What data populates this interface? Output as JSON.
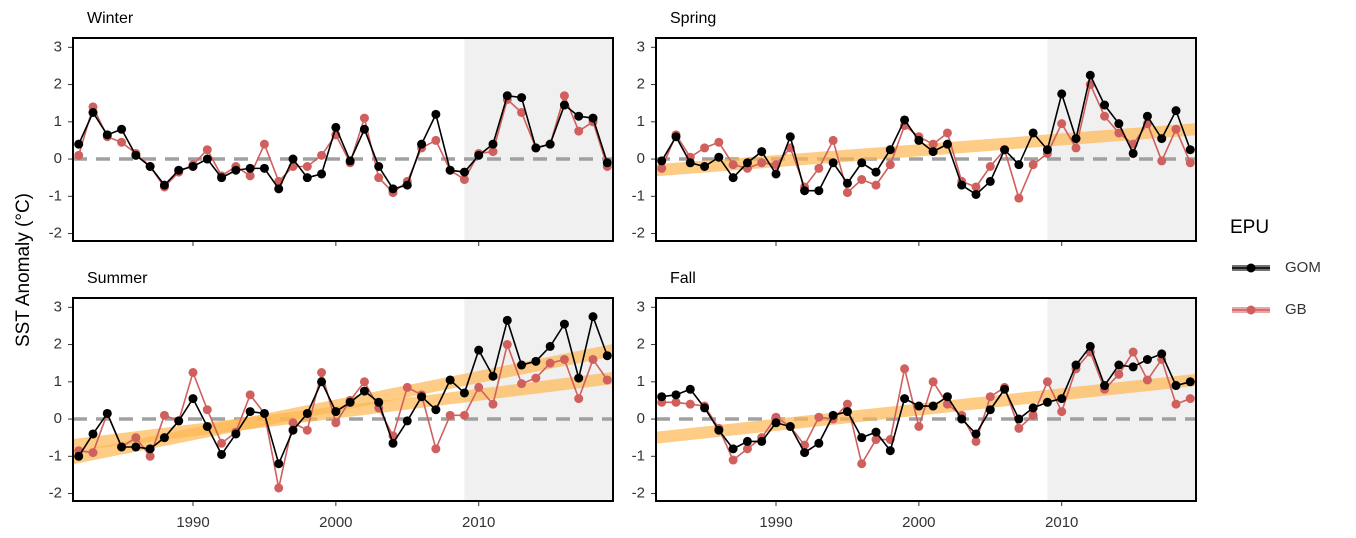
{
  "ylabel": "SST Anomaly (°C)",
  "legend_title": "EPU",
  "chart_data": [
    {
      "type": "line",
      "title": "Winter",
      "x": [
        1982,
        1983,
        1984,
        1985,
        1986,
        1987,
        1988,
        1989,
        1990,
        1991,
        1992,
        1993,
        1994,
        1995,
        1996,
        1997,
        1998,
        1999,
        2000,
        2001,
        2002,
        2003,
        2004,
        2005,
        2006,
        2007,
        2008,
        2009,
        2010,
        2011,
        2012,
        2013,
        2014,
        2015,
        2016,
        2017,
        2018,
        2019
      ],
      "series": [
        {
          "name": "GOM",
          "color": "#000000",
          "values": [
            0.4,
            1.25,
            0.65,
            0.8,
            0.1,
            -0.2,
            -0.7,
            -0.3,
            -0.2,
            0.0,
            -0.5,
            -0.3,
            -0.25,
            -0.25,
            -0.8,
            0.0,
            -0.5,
            -0.4,
            0.85,
            -0.05,
            0.8,
            -0.2,
            -0.8,
            -0.7,
            0.4,
            1.2,
            -0.3,
            -0.35,
            0.1,
            0.4,
            1.7,
            1.65,
            0.3,
            0.4,
            1.45,
            1.15,
            1.1,
            -0.1
          ]
        },
        {
          "name": "GB",
          "color": "#d0605e",
          "values": [
            0.1,
            1.4,
            0.6,
            0.45,
            0.15,
            -0.2,
            -0.75,
            -0.35,
            -0.15,
            0.25,
            -0.45,
            -0.2,
            -0.45,
            0.4,
            -0.6,
            -0.2,
            -0.2,
            0.1,
            0.65,
            -0.1,
            1.1,
            -0.5,
            -0.9,
            -0.6,
            0.3,
            0.5,
            -0.3,
            -0.55,
            0.15,
            0.2,
            1.6,
            1.25,
            0.3,
            0.4,
            1.7,
            0.75,
            1.0,
            -0.2
          ]
        }
      ],
      "trends": [],
      "xlim": [
        1981.6,
        2019.4
      ],
      "xticks": [
        1990,
        2000,
        2010
      ],
      "ylim": [
        -2.2,
        3.25
      ],
      "yticks": [
        -2,
        -1,
        0,
        1,
        2,
        3
      ],
      "shade_from": 2009,
      "zero_line": 0
    },
    {
      "type": "line",
      "title": "Spring",
      "x": [
        1982,
        1983,
        1984,
        1985,
        1986,
        1987,
        1988,
        1989,
        1990,
        1991,
        1992,
        1993,
        1994,
        1995,
        1996,
        1997,
        1998,
        1999,
        2000,
        2001,
        2002,
        2003,
        2004,
        2005,
        2006,
        2007,
        2008,
        2009,
        2010,
        2011,
        2012,
        2013,
        2014,
        2015,
        2016,
        2017,
        2018,
        2019
      ],
      "series": [
        {
          "name": "GOM",
          "color": "#000000",
          "values": [
            -0.05,
            0.6,
            -0.1,
            -0.2,
            0.05,
            -0.5,
            -0.1,
            0.2,
            -0.4,
            0.6,
            -0.85,
            -0.85,
            -0.1,
            -0.65,
            -0.1,
            -0.35,
            0.25,
            1.05,
            0.5,
            0.2,
            0.4,
            -0.7,
            -0.95,
            -0.6,
            0.25,
            -0.15,
            0.7,
            0.25,
            1.75,
            0.55,
            2.25,
            1.45,
            0.95,
            0.15,
            1.15,
            0.55,
            1.3,
            0.25
          ]
        },
        {
          "name": "GB",
          "color": "#d0605e",
          "values": [
            -0.25,
            0.65,
            0.05,
            0.3,
            0.45,
            -0.15,
            -0.25,
            -0.1,
            -0.15,
            0.3,
            -0.75,
            -0.25,
            0.5,
            -0.9,
            -0.55,
            -0.7,
            -0.15,
            0.9,
            0.6,
            0.4,
            0.7,
            -0.6,
            -0.75,
            -0.2,
            0.25,
            -1.05,
            -0.15,
            0.15,
            0.95,
            0.3,
            2.0,
            1.15,
            0.7,
            0.4,
            0.95,
            -0.05,
            0.8,
            -0.1
          ]
        }
      ],
      "trends": [
        {
          "color": "#fdb751",
          "x": [
            1981.6,
            2019.4
          ],
          "y": [
            -0.3,
            0.8
          ]
        }
      ],
      "xlim": [
        1981.6,
        2019.4
      ],
      "xticks": [
        1990,
        2000,
        2010
      ],
      "ylim": [
        -2.2,
        3.25
      ],
      "yticks": [
        -2,
        -1,
        0,
        1,
        2,
        3
      ],
      "shade_from": 2009,
      "zero_line": 0
    },
    {
      "type": "line",
      "title": "Summer",
      "x": [
        1982,
        1983,
        1984,
        1985,
        1986,
        1987,
        1988,
        1989,
        1990,
        1991,
        1992,
        1993,
        1994,
        1995,
        1996,
        1997,
        1998,
        1999,
        2000,
        2001,
        2002,
        2003,
        2004,
        2005,
        2006,
        2007,
        2008,
        2009,
        2010,
        2011,
        2012,
        2013,
        2014,
        2015,
        2016,
        2017,
        2018,
        2019
      ],
      "series": [
        {
          "name": "GOM",
          "color": "#000000",
          "values": [
            -1.0,
            -0.4,
            0.15,
            -0.75,
            -0.75,
            -0.8,
            -0.5,
            -0.05,
            0.55,
            -0.2,
            -0.95,
            -0.4,
            0.2,
            0.15,
            -1.2,
            -0.3,
            0.15,
            1.0,
            0.2,
            0.45,
            0.75,
            0.45,
            -0.65,
            -0.05,
            0.6,
            0.25,
            1.05,
            0.7,
            1.85,
            1.15,
            2.65,
            1.45,
            1.55,
            1.95,
            2.55,
            1.1,
            2.75,
            1.7
          ]
        },
        {
          "name": "GB",
          "color": "#d0605e",
          "values": [
            -0.85,
            -0.9,
            0.15,
            -0.75,
            -0.5,
            -1.0,
            0.1,
            -0.05,
            1.25,
            0.25,
            -0.65,
            -0.35,
            0.65,
            0.15,
            -1.85,
            -0.1,
            -0.3,
            1.25,
            -0.1,
            0.5,
            1.0,
            0.3,
            -0.45,
            0.85,
            0.65,
            -0.8,
            0.1,
            0.1,
            0.85,
            0.4,
            2.0,
            0.95,
            1.1,
            1.5,
            1.6,
            0.55,
            1.6,
            1.05
          ]
        }
      ],
      "trends": [
        {
          "color": "#fdb751",
          "x": [
            1981.6,
            2019.4
          ],
          "y": [
            -1.05,
            1.85
          ]
        },
        {
          "color": "#fdb751",
          "x": [
            1981.6,
            2019.4
          ],
          "y": [
            -0.7,
            1.1
          ]
        }
      ],
      "xlim": [
        1981.6,
        2019.4
      ],
      "xticks": [
        1990,
        2000,
        2010
      ],
      "ylim": [
        -2.2,
        3.25
      ],
      "yticks": [
        -2,
        -1,
        0,
        1,
        2,
        3
      ],
      "shade_from": 2009,
      "zero_line": 0
    },
    {
      "type": "line",
      "title": "Fall",
      "x": [
        1982,
        1983,
        1984,
        1985,
        1986,
        1987,
        1988,
        1989,
        1990,
        1991,
        1992,
        1993,
        1994,
        1995,
        1996,
        1997,
        1998,
        1999,
        2000,
        2001,
        2002,
        2003,
        2004,
        2005,
        2006,
        2007,
        2008,
        2009,
        2010,
        2011,
        2012,
        2013,
        2014,
        2015,
        2016,
        2017,
        2018,
        2019
      ],
      "series": [
        {
          "name": "GOM",
          "color": "#000000",
          "values": [
            0.6,
            0.65,
            0.8,
            0.3,
            -0.3,
            -0.8,
            -0.6,
            -0.6,
            -0.1,
            -0.2,
            -0.9,
            -0.65,
            0.1,
            0.2,
            -0.5,
            -0.35,
            -0.85,
            0.55,
            0.35,
            0.35,
            0.6,
            0.0,
            -0.4,
            0.25,
            0.8,
            0.0,
            0.3,
            0.45,
            0.55,
            1.45,
            1.95,
            0.9,
            1.45,
            1.4,
            1.6,
            1.75,
            0.9,
            1.0
          ]
        },
        {
          "name": "GB",
          "color": "#d0605e",
          "values": [
            0.45,
            0.45,
            0.4,
            0.35,
            -0.25,
            -1.1,
            -0.8,
            -0.5,
            0.05,
            -0.2,
            -0.7,
            0.05,
            0.0,
            0.4,
            -1.2,
            -0.55,
            -0.55,
            1.35,
            -0.2,
            1.0,
            0.4,
            0.1,
            -0.6,
            0.6,
            0.85,
            -0.25,
            0.1,
            1.0,
            0.2,
            1.35,
            1.8,
            0.8,
            1.2,
            1.8,
            1.05,
            1.6,
            0.4,
            0.55
          ]
        }
      ],
      "trends": [
        {
          "color": "#fdb751",
          "x": [
            1981.6,
            2019.4
          ],
          "y": [
            -0.5,
            1.05
          ]
        }
      ],
      "xlim": [
        1981.6,
        2019.4
      ],
      "xticks": [
        1990,
        2000,
        2010
      ],
      "ylim": [
        -2.2,
        3.25
      ],
      "yticks": [
        -2,
        -1,
        0,
        1,
        2,
        3
      ],
      "shade_from": 2009,
      "zero_line": 0
    }
  ]
}
